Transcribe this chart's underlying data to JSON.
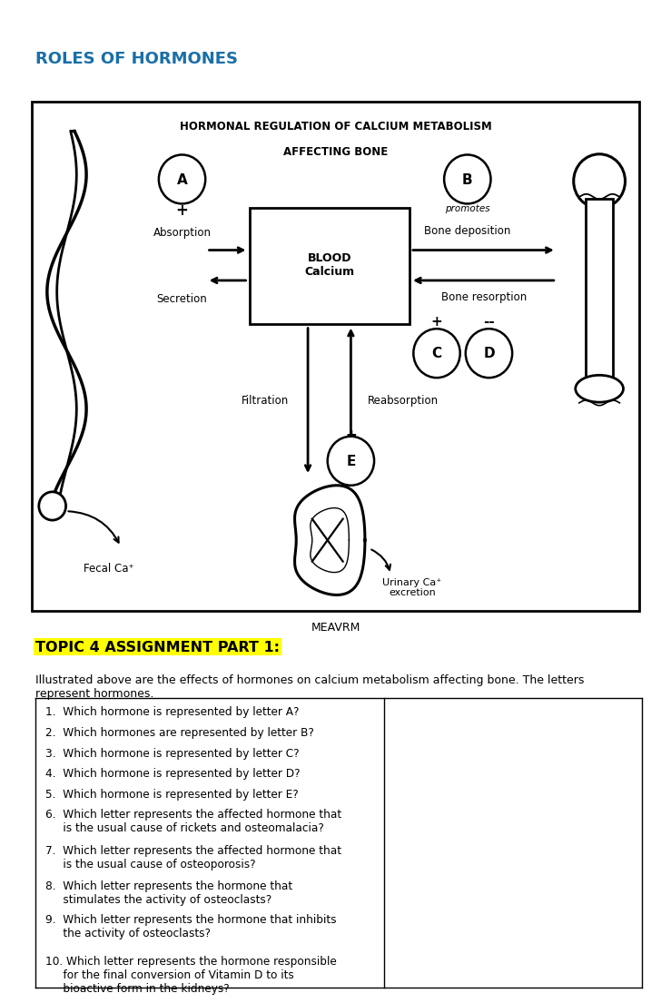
{
  "title_main": "ROLES OF HORMONES",
  "title_main_color": "#1a6fa8",
  "diagram_title_line1": "HORMONAL REGULATION OF CALCIUM METABOLISM",
  "diagram_title_line2": "AFFECTING BONE",
  "diagram_bg": "#ffffff",
  "blood_calcium_label": "BLOOD\nCalcium",
  "absorption_label": "Absorption",
  "secretion_label": "Secretion",
  "bone_deposition_label": "Bone deposition",
  "bone_resorption_label": "Bone resorption",
  "filtration_label": "Filtration",
  "reabsorption_label": "Reabsorption",
  "fecal_label": "Fecal Ca⁺",
  "urinary_label": "Urinary Ca⁺\nexcretion",
  "promotes_label": "promotes",
  "meavrm_label": "MEAVRM",
  "topic_title": "TOPIC 4 ASSIGNMENT PART 1:",
  "topic_title_bg": "#ffff00",
  "intro_text": "Illustrated above are the effects of hormones on calcium metabolism affecting bone. The letters\nrepresent hormones.",
  "questions": [
    "1.  Which hormone is represented by letter A?",
    "2.  Which hormones are represented by letter B?",
    "3.  Which hormone is represented by letter C?",
    "4.  Which hormone is represented by letter D?",
    "5.  Which hormone is represented by letter E?",
    "6.  Which letter represents the affected hormone that\n     is the usual cause of rickets and osteomalacia?",
    "7.  Which letter represents the affected hormone that\n     is the usual cause of osteoporosis?",
    "8.  Which letter represents the hormone that\n     stimulates the activity of osteoclasts?",
    "9.  Which letter represents the hormone that inhibits\n     the activity of osteoclasts?",
    "10. Which letter represents the hormone responsible\n     for the final conversion of Vitamin D to its\n     bioactive form in the kidneys?"
  ],
  "page_bg": "#ffffff",
  "text_color": "#000000"
}
